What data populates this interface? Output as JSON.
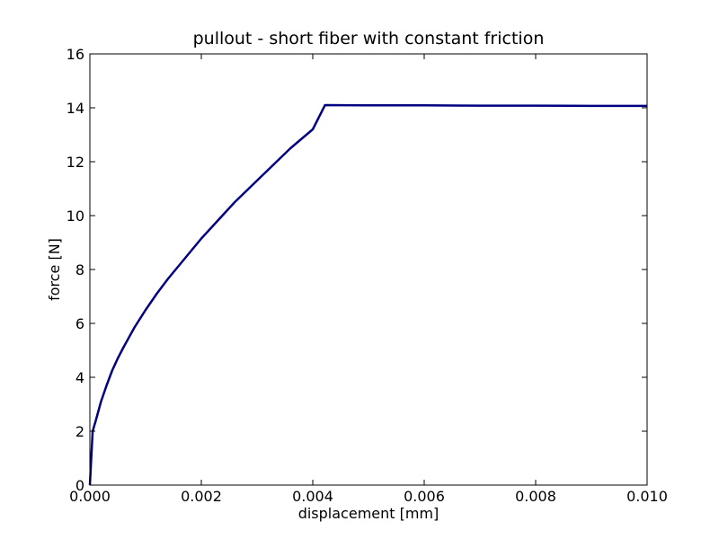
{
  "chart_data": {
    "type": "line",
    "title": "pullout - short fiber with constant friction",
    "xlabel": "displacement [mm]",
    "ylabel": "force [N]",
    "xlim": [
      0,
      0.01
    ],
    "ylim": [
      0,
      16
    ],
    "xticks": [
      "0.000",
      "0.002",
      "0.004",
      "0.006",
      "0.008",
      "0.010"
    ],
    "yticks": [
      "0",
      "2",
      "4",
      "6",
      "8",
      "10",
      "12",
      "14",
      "16"
    ],
    "grid": false,
    "legend": "none",
    "series": [
      {
        "color": "#000080",
        "x": [
          0,
          5e-05,
          0.0001,
          0.0002,
          0.0003,
          0.0004,
          0.0005,
          0.0006,
          0.0008,
          0.001,
          0.0012,
          0.0014,
          0.0016,
          0.0018,
          0.002,
          0.0022,
          0.0024,
          0.0026,
          0.0028,
          0.003,
          0.0032,
          0.0034,
          0.0036,
          0.0038,
          0.004,
          0.00422,
          0.005,
          0.006,
          0.007,
          0.008,
          0.009,
          0.01
        ],
        "y": [
          0,
          2.0,
          2.35,
          3.1,
          3.7,
          4.25,
          4.7,
          5.1,
          5.85,
          6.5,
          7.1,
          7.65,
          8.15,
          8.65,
          9.15,
          9.6,
          10.05,
          10.5,
          10.9,
          11.3,
          11.7,
          12.1,
          12.5,
          12.85,
          13.2,
          14.1,
          14.09,
          14.09,
          14.08,
          14.08,
          14.07,
          14.07
        ]
      }
    ]
  }
}
